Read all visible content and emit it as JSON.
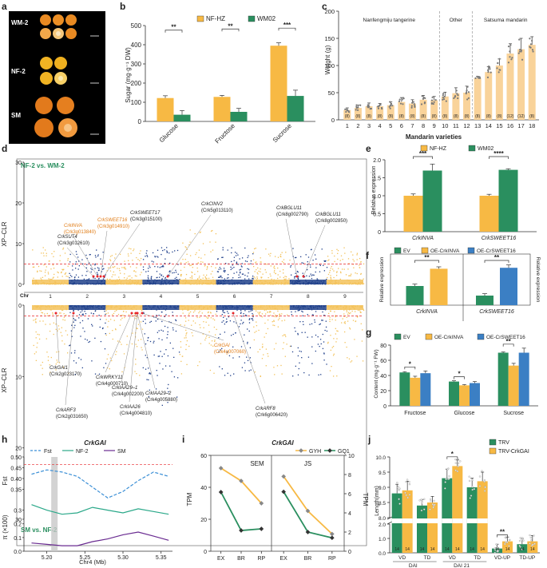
{
  "colors": {
    "orange": "#f7b944",
    "green": "#2a8f5f",
    "blue": "#3b7fc4",
    "navy": "#1f3f8a",
    "yellow_dots": "#f3c25a",
    "red": "#e8262a",
    "gray_bar": "#c8c8c8",
    "purple": "#6a2c91",
    "teal": "#2aa889",
    "fst_line": "#3b8fd6",
    "light_orange": "#f9d39a",
    "label_orange": "#e07b14"
  },
  "panels": {
    "a": {
      "letter": "a",
      "labels": [
        "WM-2",
        "NF-2",
        "SM"
      ]
    },
    "b": {
      "letter": "b"
    },
    "c": {
      "letter": "c"
    },
    "d": {
      "letter": "d"
    },
    "e": {
      "letter": "e"
    },
    "f": {
      "letter": "f"
    },
    "g": {
      "letter": "g"
    },
    "h": {
      "letter": "h"
    },
    "i": {
      "letter": "i"
    },
    "j": {
      "letter": "j"
    }
  },
  "manhattan": {
    "title_top": "NF-2 vs. WM-2",
    "title_bottom": "SM vs. NF-2",
    "ylabel": "XP–CLR",
    "chr_label": "Chr",
    "yticks_top": [
      "30",
      "20",
      "10",
      "0"
    ],
    "yticks_bottom": [
      "0",
      "10",
      "20",
      "30"
    ],
    "chromosomes": [
      "1",
      "2",
      "3",
      "4",
      "5",
      "6",
      "7",
      "8",
      "9"
    ],
    "top_labels": [
      {
        "gene": "CrkSWEET16",
        "id": "(Crk3g014910)",
        "orange": true
      },
      {
        "gene": "CrkINVA",
        "id": "(Crk3g013840)",
        "orange": true
      },
      {
        "gene": "CrkSWEET17",
        "id": "(Crk3g015100)",
        "orange": false
      },
      {
        "gene": "CrkCINV2",
        "id": "(Crk5g013110)",
        "orange": false
      },
      {
        "gene": "CrkBGLU11",
        "id": "(Crk8g002790)",
        "orange": false
      },
      {
        "gene": "CrkBGLU11",
        "id": "(Crk8g002850)",
        "orange": false
      },
      {
        "gene": "CrkSUT4",
        "id": "(Crk3g012610)",
        "orange": false
      }
    ],
    "bottom_labels": [
      {
        "gene": "CrkGAI",
        "id": "(Crk4g007060)",
        "orange": true
      },
      {
        "gene": "CrkGAI1",
        "id": "(Crk2g023170)",
        "orange": false
      },
      {
        "gene": "CrkWRKY11",
        "id": "(Crk4g000710)",
        "orange": false
      },
      {
        "gene": "CrkIAA29–1",
        "id": "(Crk4g002200)",
        "orange": false
      },
      {
        "gene": "CrkIAA29–2",
        "id": "(Crk4g005880)",
        "orange": false
      },
      {
        "gene": "CrkARF3",
        "id": "(Crk2g031650)",
        "orange": false
      },
      {
        "gene": "CrkIAA26",
        "id": "(Crk4g004810)",
        "orange": false
      },
      {
        "gene": "CrkARF8",
        "id": "(Crk6g006420)",
        "orange": false
      }
    ]
  },
  "chart_data": [
    {
      "panel": "b",
      "type": "bar",
      "categories": [
        "Glucose",
        "Fructose",
        "Sucrose"
      ],
      "series": [
        {
          "name": "NF-HZ",
          "values": [
            122,
            128,
            395
          ],
          "errors": [
            12,
            8,
            15
          ]
        },
        {
          "name": "WM02",
          "values": [
            35,
            50,
            133
          ],
          "errors": [
            22,
            18,
            30
          ]
        }
      ],
      "ylabel": "Sugar (mg·g⁻¹ DW)",
      "ylim": [
        0,
        500
      ],
      "yticks": [
        0,
        100,
        200,
        300,
        400,
        500
      ],
      "significance": [
        "**",
        "**",
        "***"
      ],
      "legend": "top"
    },
    {
      "panel": "c",
      "type": "bar",
      "categories": [
        "1",
        "2",
        "3",
        "4",
        "5",
        "6",
        "7",
        "8",
        "9",
        "10",
        "11",
        "12",
        "13",
        "14",
        "15",
        "16",
        "17",
        "18"
      ],
      "values": [
        18,
        22,
        25,
        25,
        27,
        33,
        30,
        37,
        36,
        43,
        49,
        50,
        77,
        88,
        100,
        122,
        130,
        138
      ],
      "errors": [
        4,
        5,
        6,
        5,
        6,
        8,
        7,
        8,
        7,
        8,
        10,
        12,
        3,
        10,
        12,
        18,
        20,
        15
      ],
      "n": [
        "(8)",
        "(8)",
        "(8)",
        "(8)",
        "(8)",
        "(8)",
        "(8)",
        "(8)",
        "(8)",
        "(8)",
        "(8)",
        "(8)",
        "(8)",
        "(8)",
        "(8)",
        "(12)",
        "(12)",
        "(8)"
      ],
      "groups": [
        "Nanfengmiju tangerine",
        "Other",
        "Satsuma mandarin"
      ],
      "xlabel": "Mandarin varieties",
      "ylabel": "Weight (g)",
      "ylim": [
        0,
        200
      ],
      "yticks": [
        0,
        50,
        100,
        150,
        200
      ]
    },
    {
      "panel": "e",
      "type": "bar",
      "categories": [
        "CrkINVA",
        "CrkSWEET16"
      ],
      "series": [
        {
          "name": "NF-HZ",
          "values": [
            1.0,
            1.0
          ],
          "errors": [
            0.05,
            0.04
          ]
        },
        {
          "name": "WM02",
          "values": [
            1.7,
            1.72
          ],
          "errors": [
            0.18,
            0.03
          ]
        }
      ],
      "ylabel": "Relative expression",
      "ylim": [
        0,
        2.0
      ],
      "yticks": [
        "0",
        "0.5",
        "1.0",
        "1.5",
        "2.0"
      ],
      "significance": [
        "***",
        "****"
      ],
      "legend": "top"
    },
    {
      "panel": "f",
      "type": "bar",
      "legend_names": [
        "EV",
        "OE-CrkINVA",
        "OE-CrSWEET16"
      ],
      "groups": [
        {
          "label": "CrkINVA",
          "bars": [
            {
              "name": "EV",
              "value": 1.0,
              "error": 0.1
            },
            {
              "name": "OE-CrkINVA",
              "value": 1.9,
              "error": 0.1
            }
          ],
          "sig": "**"
        },
        {
          "label": "CrkSWEET16",
          "bars": [
            {
              "name": "EV",
              "value": 0.5,
              "error": 0.1
            },
            {
              "name": "OE-CrSWEET16",
              "value": 1.95,
              "error": 0.15
            }
          ],
          "sig": "**"
        }
      ],
      "ylabel": "Relative expression",
      "ylabel_right": "Relative expression",
      "ylim": [
        0,
        2.5
      ],
      "legend": "top"
    },
    {
      "panel": "g",
      "type": "bar",
      "legend_names": [
        "EV",
        "OE-CrkINVA",
        "OE-CrSWEET16"
      ],
      "categories": [
        "Fructose",
        "Glucose",
        "Sucrose"
      ],
      "series": [
        {
          "name": "EV",
          "values": [
            44,
            32,
            70
          ],
          "errors": [
            1,
            1,
            1
          ]
        },
        {
          "name": "OE-CrkINVA",
          "values": [
            37,
            27,
            53
          ],
          "errors": [
            2,
            1,
            3
          ]
        },
        {
          "name": "OE-CrSWEET16",
          "values": [
            43,
            30,
            70
          ],
          "errors": [
            3,
            2,
            6
          ]
        }
      ],
      "significance": [
        "*",
        "*",
        "**"
      ],
      "ylabel": "Content (mg·g⁻¹ FW)",
      "ylim": [
        0,
        80
      ],
      "yticks": [
        0,
        20,
        40,
        60,
        80
      ]
    },
    {
      "panel": "h",
      "type": "line",
      "title": "CrkGAI",
      "series_names": [
        "Fst",
        "NF-2",
        "SM"
      ],
      "x": [
        5.18,
        5.2,
        5.22,
        5.24,
        5.26,
        5.28,
        5.3,
        5.32,
        5.34,
        5.36
      ],
      "fst": [
        0.42,
        0.44,
        0.43,
        0.41,
        0.36,
        0.31,
        0.34,
        0.39,
        0.43,
        0.41
      ],
      "nf2": [
        0.34,
        0.3,
        0.27,
        0.28,
        0.32,
        0.3,
        0.28,
        0.31,
        0.29,
        0.27
      ],
      "sm": [
        0.06,
        0.05,
        0.04,
        0.04,
        0.07,
        0.09,
        0.12,
        0.14,
        0.11,
        0.08
      ],
      "fst_threshold": 0.465,
      "highlight_x": 5.21,
      "xticks": [
        "5.20",
        "5.25",
        "5.30",
        "5.35"
      ],
      "xlabel": "Chr4 (Mb)",
      "ylabel_top": "Fst",
      "ylabel_bottom": "π (×100)",
      "yticks_top": [
        "0.50",
        "0.45",
        "0.40",
        "0.35"
      ],
      "yticks_bottom": [
        "0.3",
        "0.2",
        "0.1",
        "0.0"
      ]
    },
    {
      "panel": "i",
      "type": "line",
      "title": "CrkGAI",
      "legend": [
        "GYH",
        "GQ1"
      ],
      "facets": [
        "SEM",
        "JS"
      ],
      "categories": [
        "EX",
        "BR",
        "RP"
      ],
      "sem": {
        "GYH": [
          52,
          44,
          30
        ],
        "GQ1": [
          37,
          13,
          14
        ]
      },
      "js": {
        "GYH": [
          7.8,
          4.2,
          1.8
        ],
        "GQ1": [
          6.2,
          2.0,
          1.4
        ]
      },
      "ylabel_left": "TPM",
      "ylabel_right": "TPM",
      "ylim_left": [
        0,
        60
      ],
      "ylim_right": [
        0,
        10
      ],
      "yticks_left": [
        0,
        20,
        40,
        60
      ],
      "yticks_right": [
        0,
        2,
        4,
        6,
        8,
        10
      ]
    },
    {
      "panel": "j",
      "type": "bar",
      "legend": [
        "TRV",
        "TRV-CrkGAI"
      ],
      "categories": [
        "VD",
        "TD",
        "VD",
        "TD",
        "VD-UP",
        "TD-UP"
      ],
      "groups_label": [
        "DAI",
        "DAI 21"
      ],
      "series": [
        {
          "name": "TRV",
          "values": [
            8.8,
            8.4,
            9.3,
            9.0,
            0.3,
            0.6
          ],
          "errors": [
            0.3,
            0.2,
            0.3,
            0.3,
            0.3,
            0.4
          ]
        },
        {
          "name": "TRV-CrkGAI",
          "values": [
            8.9,
            8.5,
            9.7,
            9.2,
            0.8,
            0.8
          ],
          "errors": [
            0.3,
            0.2,
            0.2,
            0.3,
            0.3,
            0.4
          ]
        }
      ],
      "n": "14",
      "significance": [
        "",
        "",
        "*",
        "",
        "**",
        ""
      ],
      "ylabel": "Length(mm)",
      "yticks_top": [
        "8.0",
        "8.5",
        "9.0",
        "9.5",
        "10.0"
      ],
      "yticks_bottom": [
        "0.0",
        "0.5",
        "1.0",
        "1.5",
        "2.0"
      ]
    }
  ]
}
